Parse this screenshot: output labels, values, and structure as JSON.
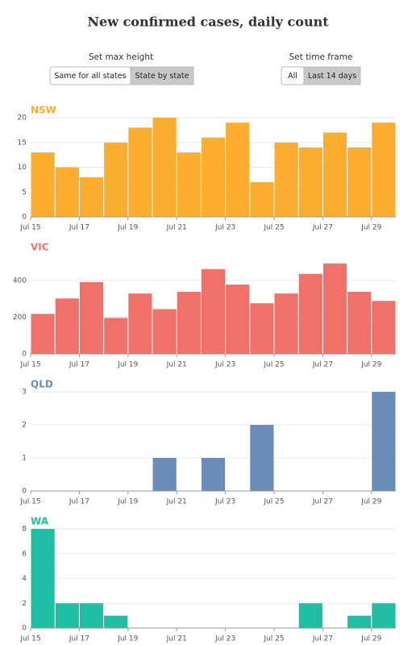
{
  "title": "New confirmed cases, daily count",
  "controls": [
    {
      "label": "Set max height",
      "options": [
        "Same for all states",
        "State by state"
      ],
      "selected": 1
    },
    {
      "label": "Set time frame",
      "options": [
        "All",
        "Last 14 days"
      ],
      "selected": 1
    }
  ],
  "chart_data": [
    {
      "type": "bar",
      "title": "NSW",
      "color": "#fbad2f",
      "categories": [
        "Jul 15",
        null,
        "Jul 17",
        null,
        "Jul 19",
        null,
        "Jul 21",
        null,
        "Jul 23",
        null,
        "Jul 25",
        null,
        "Jul 27",
        null,
        "Jul 29"
      ],
      "values": [
        13,
        10,
        8,
        15,
        18,
        20,
        13,
        16,
        19,
        7,
        15,
        14,
        17,
        14,
        19
      ],
      "ylim": [
        0,
        20
      ],
      "yticks": [
        0,
        5,
        10,
        15,
        20
      ],
      "grid": true
    },
    {
      "type": "bar",
      "title": "VIC",
      "color": "#f0716a",
      "categories": [
        "Jul 15",
        null,
        "Jul 17",
        null,
        "Jul 19",
        null,
        "Jul 21",
        null,
        "Jul 23",
        null,
        "Jul 25",
        null,
        "Jul 27",
        null,
        "Jul 29"
      ],
      "values": [
        218,
        302,
        391,
        196,
        329,
        244,
        338,
        462,
        378,
        276,
        329,
        436,
        493,
        338,
        289
      ],
      "ylim": [
        0,
        540
      ],
      "yticks": [
        0,
        200,
        400
      ],
      "grid": true
    },
    {
      "type": "bar",
      "title": "QLD",
      "color": "#6a8cb9",
      "categories": [
        "Jul 15",
        null,
        "Jul 17",
        null,
        "Jul 19",
        null,
        "Jul 21",
        null,
        "Jul 23",
        null,
        "Jul 25",
        null,
        "Jul 27",
        null,
        "Jul 29"
      ],
      "values": [
        0,
        0,
        0,
        0,
        0,
        1,
        0,
        1,
        0,
        2,
        0,
        0,
        0,
        0,
        3
      ],
      "ylim": [
        0,
        3
      ],
      "yticks": [
        0,
        1,
        2,
        3
      ],
      "grid": true
    },
    {
      "type": "bar",
      "title": "WA",
      "color": "#20bea4",
      "categories": [
        "Jul 15",
        null,
        "Jul 17",
        null,
        "Jul 19",
        null,
        "Jul 21",
        null,
        "Jul 23",
        null,
        "Jul 25",
        null,
        "Jul 27",
        null,
        "Jul 29"
      ],
      "values": [
        8,
        2,
        2,
        1,
        0,
        0,
        0,
        0,
        0,
        0,
        0,
        2,
        0,
        1,
        2
      ],
      "ylim": [
        0,
        8
      ],
      "yticks": [
        0,
        2,
        4,
        6,
        8
      ],
      "grid": true
    }
  ]
}
